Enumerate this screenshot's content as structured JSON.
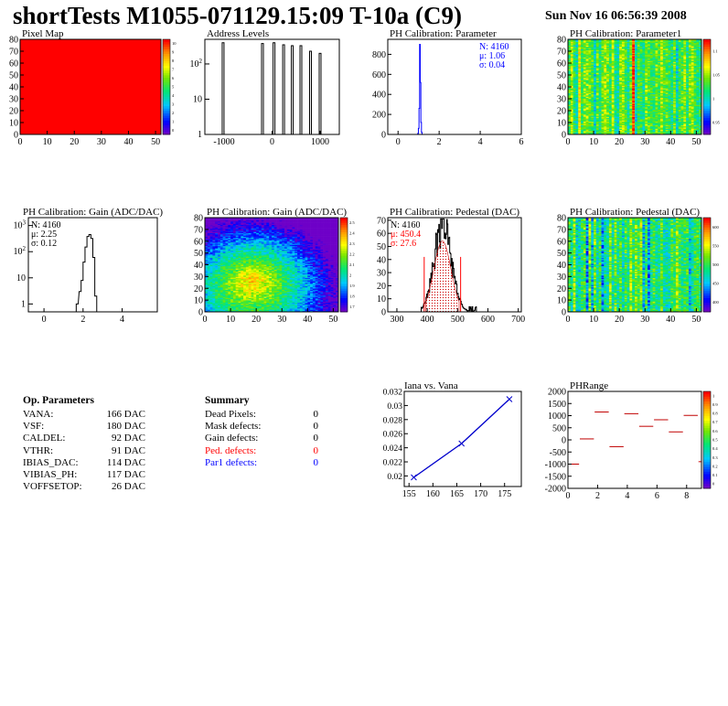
{
  "page": {
    "title": "shortTests M1055-071129.15:09 T-10a (C9)",
    "date": "Sun Nov 16 06:56:39 2008"
  },
  "chart_data": [
    {
      "id": "pixel_map",
      "type": "heatmap",
      "title": "Pixel Map",
      "xlim": [
        0,
        52
      ],
      "ylim": [
        0,
        80
      ],
      "fill_color": "#ff0000",
      "xticks": [
        "0",
        "10",
        "20",
        "30",
        "40",
        "50"
      ],
      "yticks": [
        "0",
        "10",
        "20",
        "30",
        "40",
        "50",
        "60",
        "70",
        "80"
      ],
      "palette_ticks": [
        "0",
        "1",
        "2",
        "3",
        "4",
        "5",
        "6",
        "7",
        "8",
        "9",
        "10"
      ]
    },
    {
      "id": "address_levels",
      "type": "bar",
      "title": "Address Levels",
      "xlim": [
        -1400,
        1400
      ],
      "log_y": true,
      "ylim": [
        1,
        500
      ],
      "xticks": [
        "-1000",
        "0",
        "1000"
      ],
      "yticks": [
        {
          "v": 1,
          "label": "1"
        },
        {
          "v": 10,
          "label": "10"
        },
        {
          "v": 100,
          "label": "10^2"
        }
      ],
      "peaks": [
        {
          "x": -1020,
          "h": 400
        },
        {
          "x": -200,
          "h": 380
        },
        {
          "x": 40,
          "h": 400
        },
        {
          "x": 240,
          "h": 350
        },
        {
          "x": 420,
          "h": 330
        },
        {
          "x": 600,
          "h": 330
        },
        {
          "x": 800,
          "h": 230
        },
        {
          "x": 1000,
          "h": 200
        }
      ]
    },
    {
      "id": "ph_param",
      "type": "bar",
      "title": "PH Calibration: Parameter",
      "xlim": [
        -0.5,
        6
      ],
      "ylim": [
        0,
        950
      ],
      "xticks": [
        "0",
        "2",
        "4",
        "6"
      ],
      "yticks": [
        "0",
        "200",
        "400",
        "600",
        "800"
      ],
      "stats": [
        {
          "label": "N: 4160",
          "color": "#0000ff"
        },
        {
          "label": "μ: 1.06",
          "color": "#0000ff"
        },
        {
          "label": "σ: 0.04",
          "color": "#0000ff"
        }
      ],
      "bars": [
        [
          0.96,
          10
        ],
        [
          0.99,
          60
        ],
        [
          1.02,
          260
        ],
        [
          1.05,
          900
        ],
        [
          1.08,
          520
        ],
        [
          1.11,
          120
        ],
        [
          1.14,
          20
        ]
      ],
      "line_color": "#0000ff"
    },
    {
      "id": "ph_param1",
      "type": "heatmap",
      "title": "PH Calibration: Parameter1",
      "xlim": [
        0,
        52
      ],
      "ylim": [
        0,
        80
      ],
      "xticks": [
        "0",
        "10",
        "20",
        "30",
        "40",
        "50"
      ],
      "yticks": [
        "0",
        "10",
        "20",
        "30",
        "40",
        "50",
        "60",
        "70",
        "80"
      ],
      "palette_ticks": [
        "0.95",
        "1",
        "1.05",
        "1.1"
      ]
    },
    {
      "id": "gain_hist",
      "type": "bar",
      "title": "PH Calibration: Gain (ADC/DAC)",
      "xlim": [
        -0.8,
        5.8
      ],
      "log_y": true,
      "ylim": [
        0.5,
        2000
      ],
      "xticks": [
        "0",
        "2",
        "4"
      ],
      "yticks": [
        {
          "v": 1,
          "label": "1"
        },
        {
          "v": 10,
          "label": "10"
        },
        {
          "v": 100,
          "label": "10^2"
        },
        {
          "v": 1000,
          "label": "10^3"
        }
      ],
      "stats": [
        {
          "label": "N: 4160",
          "color": "#000000"
        },
        {
          "label": "μ: 2.25",
          "color": "#000000"
        },
        {
          "label": "σ: 0.12",
          "color": "#000000"
        }
      ],
      "bars": [
        [
          1.65,
          1
        ],
        [
          1.8,
          3
        ],
        [
          1.9,
          8
        ],
        [
          2.0,
          40
        ],
        [
          2.1,
          150
        ],
        [
          2.2,
          380
        ],
        [
          2.3,
          450
        ],
        [
          2.4,
          320
        ],
        [
          2.5,
          60
        ],
        [
          2.6,
          2
        ]
      ]
    },
    {
      "id": "gain_map",
      "type": "heatmap",
      "title": "PH Calibration: Gain (ADC/DAC)",
      "xlim": [
        0,
        52
      ],
      "ylim": [
        0,
        80
      ],
      "xticks": [
        "0",
        "10",
        "20",
        "30",
        "40",
        "50"
      ],
      "yticks": [
        "0",
        "10",
        "20",
        "30",
        "40",
        "50",
        "60",
        "70",
        "80"
      ],
      "palette_ticks": [
        "1.7",
        "1.8",
        "1.9",
        "2",
        "2.1",
        "2.2",
        "2.3",
        "2.4",
        "2.5"
      ]
    },
    {
      "id": "pedestal_hist",
      "type": "bar",
      "title": "PH Calibration: Pedestal (DAC)",
      "xlim": [
        270,
        710
      ],
      "ylim": [
        0,
        72
      ],
      "xticks": [
        "300",
        "400",
        "500",
        "600",
        "700"
      ],
      "yticks": [
        "0",
        "10",
        "20",
        "30",
        "40",
        "50",
        "60",
        "70"
      ],
      "stats": [
        {
          "label": "N: 4160",
          "color": "#000000"
        },
        {
          "label": "μ: 450.4",
          "color": "#ff0000"
        },
        {
          "label": "σ: 27.6",
          "color": "#ff0000"
        }
      ],
      "center": 450,
      "width": 28,
      "peak": 66
    },
    {
      "id": "pedestal_map",
      "type": "heatmap",
      "title": "PH Calibration: Pedestal (DAC)",
      "xlim": [
        0,
        52
      ],
      "ylim": [
        0,
        80
      ],
      "xticks": [
        "0",
        "10",
        "20",
        "30",
        "40",
        "50"
      ],
      "yticks": [
        "0",
        "10",
        "20",
        "30",
        "40",
        "50",
        "60",
        "70",
        "80"
      ],
      "palette_ticks": [
        "400",
        "450",
        "500",
        "550",
        "600"
      ]
    },
    {
      "id": "iana_vana",
      "type": "line",
      "title": "Iana vs. Vana",
      "x": [
        156,
        166,
        176
      ],
      "y": [
        0.0198,
        0.0246,
        0.0309
      ],
      "xlim": [
        154,
        178.5
      ],
      "ylim": [
        0.0185,
        0.032
      ],
      "xticks": [
        "155",
        "160",
        "165",
        "170",
        "175"
      ],
      "yticks": [
        "0.02",
        "0.022",
        "0.024",
        "0.026",
        "0.028",
        "0.03",
        "0.032"
      ],
      "color": "#0000cc"
    },
    {
      "id": "ph_range",
      "type": "scatter",
      "title": "PHRange",
      "xlim": [
        0,
        9
      ],
      "ylim": [
        -2000,
        2000
      ],
      "xticks": [
        "0",
        "2",
        "4",
        "6",
        "8"
      ],
      "yticks": [
        "-2000",
        "-1500",
        "-1000",
        "-500",
        "0",
        "500",
        "1000",
        "1500",
        "2000"
      ],
      "segments": [
        [
          0,
          -1000
        ],
        [
          1,
          40
        ],
        [
          2,
          1150
        ],
        [
          3,
          -280
        ],
        [
          4,
          1080
        ],
        [
          5,
          560
        ],
        [
          6,
          830
        ],
        [
          7,
          330
        ],
        [
          8,
          1010
        ],
        [
          9,
          -900
        ]
      ],
      "palette_ticks": [
        "0",
        "0.1",
        "0.2",
        "0.3",
        "0.4",
        "0.5",
        "0.6",
        "0.7",
        "0.8",
        "0.9",
        "1"
      ]
    }
  ],
  "ops": {
    "title": "Op. Parameters",
    "rows": [
      {
        "k": "VANA:",
        "v": "166 DAC"
      },
      {
        "k": "VSF:",
        "v": "180 DAC"
      },
      {
        "k": "CALDEL:",
        "v": "92 DAC"
      },
      {
        "k": "VTHR:",
        "v": "91 DAC"
      },
      {
        "k": "IBIAS_DAC:",
        "v": "114 DAC"
      },
      {
        "k": "VIBIAS_PH:",
        "v": "117 DAC"
      },
      {
        "k": "VOFFSETOP:",
        "v": "26 DAC"
      }
    ]
  },
  "summary": {
    "title": "Summary",
    "rows": [
      {
        "k": "Dead Pixels:",
        "v": "0",
        "color": "#000000"
      },
      {
        "k": "Mask defects:",
        "v": "0",
        "color": "#000000"
      },
      {
        "k": "Gain defects:",
        "v": "0",
        "color": "#000000"
      },
      {
        "k": "Ped. defects:",
        "v": "0",
        "color": "#ff0000"
      },
      {
        "k": "Par1 defects:",
        "v": "0",
        "color": "#0000ff"
      }
    ]
  }
}
